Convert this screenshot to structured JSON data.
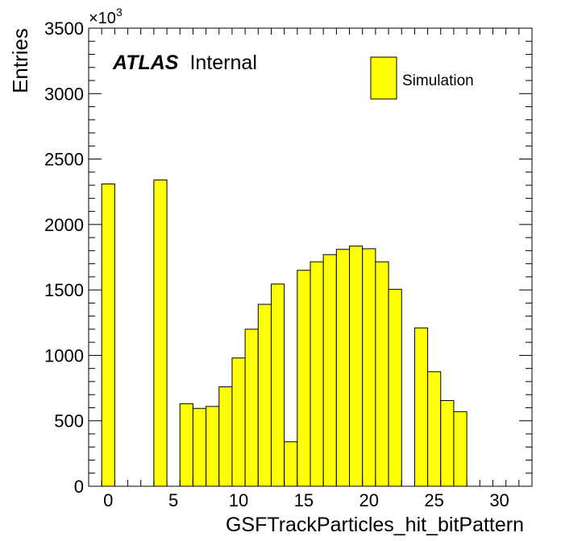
{
  "chart_data": {
    "type": "bar",
    "title": "",
    "xlabel": "GSFTrackParticles_hit_bitPattern",
    "ylabel": "Entries",
    "y_multiplier": "×10",
    "y_multiplier_exp": "3",
    "xlim": [
      -1.5,
      32.5
    ],
    "ylim": [
      0,
      3500
    ],
    "x_ticks": [
      0,
      5,
      10,
      15,
      20,
      25,
      30
    ],
    "y_ticks": [
      0,
      500,
      1000,
      1500,
      2000,
      2500,
      3000,
      3500
    ],
    "bin_width": 1,
    "bins": [
      {
        "x": -0.5,
        "value": 2310
      },
      {
        "x": 0.5,
        "value": 0
      },
      {
        "x": 1.5,
        "value": 0
      },
      {
        "x": 2.5,
        "value": 0
      },
      {
        "x": 3.5,
        "value": 2340
      },
      {
        "x": 4.5,
        "value": 0
      },
      {
        "x": 5.5,
        "value": 630
      },
      {
        "x": 6.5,
        "value": 595
      },
      {
        "x": 7.5,
        "value": 610
      },
      {
        "x": 8.5,
        "value": 760
      },
      {
        "x": 9.5,
        "value": 980
      },
      {
        "x": 10.5,
        "value": 1200
      },
      {
        "x": 11.5,
        "value": 1390
      },
      {
        "x": 12.5,
        "value": 1545
      },
      {
        "x": 13.5,
        "value": 340
      },
      {
        "x": 14.5,
        "value": 1650
      },
      {
        "x": 15.5,
        "value": 1715
      },
      {
        "x": 16.5,
        "value": 1770
      },
      {
        "x": 17.5,
        "value": 1810
      },
      {
        "x": 18.5,
        "value": 1835
      },
      {
        "x": 19.5,
        "value": 1815
      },
      {
        "x": 20.5,
        "value": 1715
      },
      {
        "x": 21.5,
        "value": 1505
      },
      {
        "x": 22.5,
        "value": 0
      },
      {
        "x": 23.5,
        "value": 1210
      },
      {
        "x": 24.5,
        "value": 875
      },
      {
        "x": 25.5,
        "value": 655
      },
      {
        "x": 26.5,
        "value": 570
      }
    ],
    "series": [
      {
        "name": "Simulation",
        "color": "#ffff00"
      }
    ],
    "legend": {
      "label": "Simulation",
      "position": "top-right"
    },
    "annotation": {
      "bold": "ATLAS",
      "text": "Internal"
    },
    "colors": {
      "fill": "#ffff00",
      "line": "#000000"
    }
  }
}
